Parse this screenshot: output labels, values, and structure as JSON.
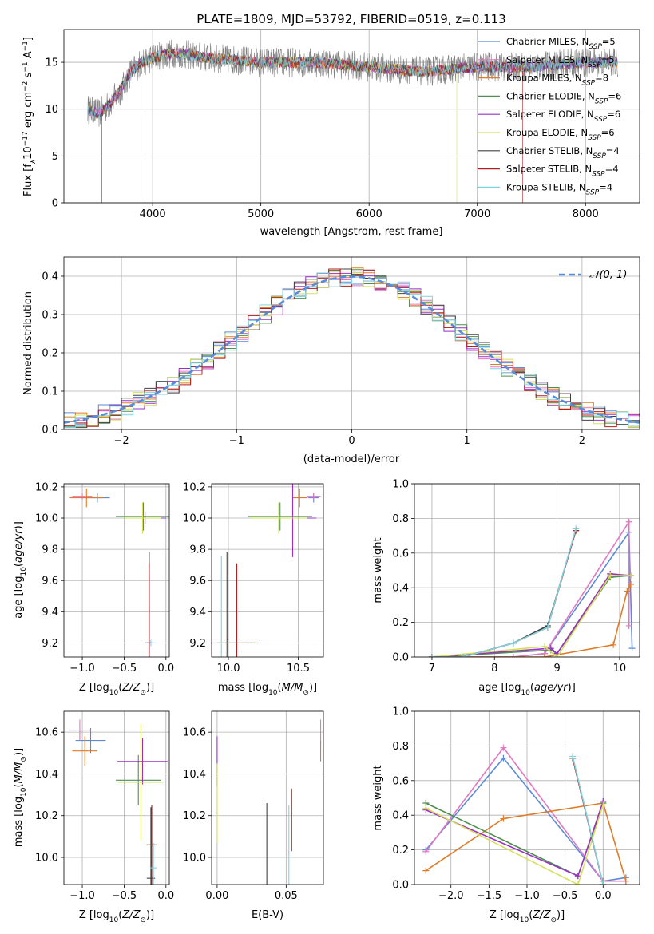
{
  "chart_data": [
    {
      "id": "spectrum",
      "type": "line",
      "title": "PLATE=1809, MJD=53792, FIBERID=0519, z=0.113",
      "xlabel": "wavelength [Angstrom, rest frame]",
      "ylabel": "Flux [fλ10^-17 erg cm^-2 s^-1 A^-1]",
      "xlim": [
        3180,
        8500
      ],
      "ylim": [
        0,
        18.5
      ],
      "xticks": [
        4000,
        5000,
        6000,
        7000,
        8000
      ],
      "yticks": [
        0,
        5,
        10,
        15
      ],
      "legend_loc": "right",
      "legend": [
        {
          "label": "Chabrier MILES, N_SSP=5",
          "color": "#5b8bd6"
        },
        {
          "label": "Salpeter MILES, N_SSP=5",
          "color": "#e377c2"
        },
        {
          "label": "Kroupa MILES, N_SSP=8",
          "color": "#e07b28"
        },
        {
          "label": "Chabrier ELODIE, N_SSP=6",
          "color": "#4f8f4f"
        },
        {
          "label": "Salpeter ELODIE, N_SSP=6",
          "color": "#9b30c8"
        },
        {
          "label": "Kroupa ELODIE, N_SSP=6",
          "color": "#d6e05a"
        },
        {
          "label": "Chabrier STELIB, N_SSP=4",
          "color": "#404040"
        },
        {
          "label": "Salpeter STELIB, N_SSP=4",
          "color": "#b21f1f"
        },
        {
          "label": "Kroupa STELIB, N_SSP=4",
          "color": "#7fd3df"
        }
      ],
      "continuum": [
        [
          3400,
          10
        ],
        [
          3500,
          9.5
        ],
        [
          3600,
          10.5
        ],
        [
          3700,
          12
        ],
        [
          3800,
          14
        ],
        [
          3900,
          15
        ],
        [
          4000,
          15.5
        ],
        [
          4200,
          16
        ],
        [
          4500,
          15.5
        ],
        [
          5000,
          15
        ],
        [
          5500,
          15
        ],
        [
          6000,
          14.5
        ],
        [
          6500,
          14
        ],
        [
          7000,
          14.5
        ],
        [
          7500,
          14.5
        ],
        [
          8000,
          15
        ],
        [
          8300,
          15
        ]
      ],
      "data_range": [
        3400,
        8300
      ],
      "kroupa_elodie_range": [
        3930,
        6810
      ],
      "salpeter_stelib_range": [
        3530,
        7420
      ]
    },
    {
      "id": "residuals",
      "type": "histogram",
      "xlabel": "(data-model)/error",
      "ylabel": "Normed distribution",
      "xlim": [
        -2.5,
        2.5
      ],
      "ylim": [
        0,
        0.45
      ],
      "xticks": [
        -2,
        -1,
        0,
        1,
        2
      ],
      "yticks": [
        0.0,
        0.1,
        0.2,
        0.3,
        0.4
      ],
      "legend": [
        {
          "label": "𝒩(0, 1)",
          "color": "#5b8bd6",
          "style": "dashed"
        }
      ],
      "legend_loc": "top-right",
      "bin_width": 0.1,
      "series_colors": [
        "#5b8bd6",
        "#e377c2",
        "#e07b28",
        "#4f8f4f",
        "#9b30c8",
        "#d6e05a",
        "#404040",
        "#b21f1f",
        "#7fd3df"
      ]
    },
    {
      "id": "age-vs-Z",
      "type": "errorbar",
      "xlabel": "Z [log10(Z/Z☉)]",
      "ylabel": "age  [log10(age/yr)]",
      "xlim": [
        -1.22,
        0.04
      ],
      "ylim": [
        9.11,
        10.22
      ],
      "xticks": [
        -1.0,
        -0.5,
        0.0
      ],
      "yticks": [
        9.2,
        9.4,
        9.6,
        9.8,
        10.0,
        10.2
      ],
      "points": [
        {
          "x": -0.82,
          "y": 10.13,
          "xerr": 0.15,
          "yerr": 0.03,
          "color": "#5b8bd6"
        },
        {
          "x": -1.0,
          "y": 10.14,
          "xerr": 0.12,
          "yerr": 0.02,
          "color": "#e377c2"
        },
        {
          "x": -0.95,
          "y": 10.13,
          "xerr": 0.2,
          "yerr": 0.06,
          "color": "#e07b28"
        },
        {
          "x": -0.27,
          "y": 10.01,
          "xerr": 0.33,
          "yerr": 0.09,
          "color": "#4f8f4f"
        },
        {
          "x": -0.25,
          "y": 10.0,
          "xerr": 0.25,
          "yerr": 0.04,
          "color": "#9b30c8"
        },
        {
          "x": -0.28,
          "y": 10.0,
          "xerr": 0.22,
          "yerr": 0.1,
          "color": "#d6e05a"
        },
        {
          "x": -0.2,
          "y": 9.2,
          "xerr": 0.05,
          "yerr": 0.58,
          "color": "#404040"
        },
        {
          "x": -0.2,
          "y": 9.2,
          "xerr": 0.03,
          "yerr": 0.51,
          "color": "#b21f1f"
        },
        {
          "x": -0.18,
          "y": 9.2,
          "xerr": 0.06,
          "yerr": 0.02,
          "color": "#7fd3df"
        }
      ]
    },
    {
      "id": "age-vs-mass",
      "type": "errorbar",
      "xlabel": "mass [log10(M/M☉)]",
      "ylabel": "",
      "xlim": [
        9.88,
        10.68
      ],
      "ylim": [
        9.11,
        10.22
      ],
      "xticks": [
        10.0,
        10.5
      ],
      "yticks": [
        9.2,
        9.4,
        9.6,
        9.8,
        10.0,
        10.2
      ],
      "points": [
        {
          "x": 10.61,
          "y": 10.13,
          "xerr": 0.04,
          "yerr": 0.03,
          "color": "#5b8bd6"
        },
        {
          "x": 10.61,
          "y": 10.14,
          "xerr": 0.05,
          "yerr": 0.02,
          "color": "#e377c2"
        },
        {
          "x": 10.51,
          "y": 10.13,
          "xerr": 0.05,
          "yerr": 0.06,
          "color": "#e07b28"
        },
        {
          "x": 10.37,
          "y": 10.01,
          "xerr": 0.23,
          "yerr": 0.09,
          "color": "#4f8f4f"
        },
        {
          "x": 10.46,
          "y": 10.0,
          "xerr": 0.17,
          "yerr": 0.25,
          "color": "#9b30c8"
        },
        {
          "x": 10.36,
          "y": 10.0,
          "xerr": 0.2,
          "yerr": 0.1,
          "color": "#d6e05a"
        },
        {
          "x": 9.99,
          "y": 9.2,
          "xerr": 0.0,
          "yerr": 0.58,
          "color": "#404040"
        },
        {
          "x": 10.06,
          "y": 9.2,
          "xerr": 0.14,
          "yerr": 0.51,
          "color": "#b21f1f"
        },
        {
          "x": 9.95,
          "y": 9.2,
          "xerr": 0.23,
          "yerr": 0.56,
          "color": "#7fd3df"
        }
      ]
    },
    {
      "id": "massweight-vs-age",
      "type": "line",
      "xlabel": "age  [log10(age/yr)]",
      "ylabel": "mass weight",
      "xlim": [
        6.72,
        10.32
      ],
      "ylim": [
        0,
        1.0
      ],
      "xticks": [
        7,
        8,
        9,
        10
      ],
      "yticks": [
        0.0,
        0.2,
        0.4,
        0.6,
        0.8,
        1.0
      ],
      "series": [
        {
          "color": "#5b8bd6",
          "x": [
            7.0,
            8.3,
            8.8,
            10.15,
            10.2
          ],
          "y": [
            0.0,
            0.0,
            0.02,
            0.72,
            0.05
          ]
        },
        {
          "color": "#e377c2",
          "x": [
            7.0,
            8.3,
            8.8,
            10.15,
            10.15
          ],
          "y": [
            0.0,
            0.0,
            0.02,
            0.78,
            0.18
          ]
        },
        {
          "color": "#e07b28",
          "x": [
            7.0,
            8.8,
            9.9,
            10.12,
            10.18
          ],
          "y": [
            0.0,
            0.0,
            0.07,
            0.38,
            0.42
          ]
        },
        {
          "color": "#4f8f4f",
          "x": [
            7.0,
            8.9,
            9.0,
            9.85,
            10.18
          ],
          "y": [
            0.0,
            0.04,
            0.02,
            0.46,
            0.47
          ]
        },
        {
          "color": "#9b30c8",
          "x": [
            7.0,
            8.9,
            9.0,
            9.85,
            10.18
          ],
          "y": [
            0.0,
            0.05,
            0.02,
            0.48,
            0.47
          ]
        },
        {
          "color": "#d6e05a",
          "x": [
            7.0,
            8.8,
            9.0,
            9.85,
            10.18
          ],
          "y": [
            0.0,
            0.06,
            0.0,
            0.47,
            0.47
          ]
        },
        {
          "color": "#404040",
          "x": [
            7.0,
            7.5,
            8.3,
            8.85,
            9.3
          ],
          "y": [
            0.0,
            0.0,
            0.08,
            0.18,
            0.73
          ]
        },
        {
          "color": "#b21f1f",
          "x": [
            7.0,
            7.5,
            8.3,
            8.85,
            9.3
          ],
          "y": [
            0.0,
            0.0,
            0.08,
            0.17,
            0.73
          ]
        },
        {
          "color": "#7fd3df",
          "x": [
            7.0,
            7.5,
            8.3,
            8.85,
            9.3
          ],
          "y": [
            0.0,
            0.0,
            0.08,
            0.17,
            0.74
          ]
        }
      ]
    },
    {
      "id": "mass-vs-Z",
      "type": "errorbar",
      "xlabel": "Z [log10(Z/Z☉)]",
      "ylabel": "mass [log10(M/M☉)]",
      "xlim": [
        -1.22,
        0.04
      ],
      "ylim": [
        9.87,
        10.7
      ],
      "xticks": [
        -1.0,
        -0.5,
        0.0
      ],
      "yticks": [
        10.0,
        10.2,
        10.4,
        10.6
      ],
      "points": [
        {
          "x": -0.9,
          "y": 10.56,
          "xerr": 0.18,
          "yerr": 0.06,
          "color": "#5b8bd6"
        },
        {
          "x": -1.03,
          "y": 10.61,
          "xerr": 0.12,
          "yerr": 0.05,
          "color": "#e377c2"
        },
        {
          "x": -0.97,
          "y": 10.51,
          "xerr": 0.15,
          "yerr": 0.07,
          "color": "#e07b28"
        },
        {
          "x": -0.33,
          "y": 10.37,
          "xerr": 0.27,
          "yerr": 0.12,
          "color": "#4f8f4f"
        },
        {
          "x": -0.28,
          "y": 10.46,
          "xerr": 0.3,
          "yerr": 0.11,
          "color": "#9b30c8"
        },
        {
          "x": -0.3,
          "y": 10.36,
          "xerr": 0.27,
          "yerr": 0.28,
          "color": "#d6e05a"
        },
        {
          "x": -0.18,
          "y": 9.9,
          "xerr": 0.05,
          "yerr": 0.34,
          "color": "#404040"
        },
        {
          "x": -0.17,
          "y": 10.06,
          "xerr": 0.06,
          "yerr": 0.19,
          "color": "#b21f1f"
        },
        {
          "x": -0.15,
          "y": 9.95,
          "xerr": 0.04,
          "yerr": 0.12,
          "color": "#7fd3df"
        }
      ]
    },
    {
      "id": "mass-vs-EBV",
      "type": "errorbar",
      "xlabel": "E(B-V)",
      "ylabel": "",
      "xlim": [
        -0.004,
        0.077
      ],
      "ylim": [
        9.87,
        10.7
      ],
      "xticks": [
        0.0,
        0.05
      ],
      "yticks": [
        10.0,
        10.2,
        10.4,
        10.6
      ],
      "points": [
        {
          "x": 0.075,
          "y": 10.6,
          "xerr": 0.0,
          "yerr": 0.06,
          "color": "#e377c2"
        },
        {
          "x": 0.075,
          "y": 10.51,
          "xerr": 0.0,
          "yerr": 0.05,
          "color": "#e07b28"
        },
        {
          "x": 0.0,
          "y": 10.46,
          "xerr": 0.0,
          "yerr": 0.12,
          "color": "#9b30c8"
        },
        {
          "x": 0.0,
          "y": 10.26,
          "xerr": 0.0,
          "yerr": 0.19,
          "color": "#d6e05a"
        },
        {
          "x": 0.036,
          "y": 10.02,
          "xerr": 0.0,
          "yerr": 0.24,
          "color": "#404040"
        },
        {
          "x": 0.054,
          "y": 10.18,
          "xerr": 0.0,
          "yerr": 0.15,
          "color": "#b21f1f"
        },
        {
          "x": 0.052,
          "y": 10.06,
          "xerr": 0.0,
          "yerr": 0.19,
          "color": "#7fd3df"
        }
      ]
    },
    {
      "id": "massweight-vs-Z",
      "type": "line",
      "xlabel": "Z [log10(Z/Z☉)]",
      "ylabel": "mass weight",
      "xlim": [
        -2.48,
        0.48
      ],
      "ylim": [
        0,
        1.0
      ],
      "xticks": [
        -2.0,
        -1.5,
        -1.0,
        -0.5,
        0.0
      ],
      "yticks": [
        0.0,
        0.2,
        0.4,
        0.6,
        0.8,
        1.0
      ],
      "series": [
        {
          "color": "#5b8bd6",
          "x": [
            -2.33,
            -1.31,
            0.0,
            0.3
          ],
          "y": [
            0.2,
            0.73,
            0.02,
            0.04
          ]
        },
        {
          "color": "#e377c2",
          "x": [
            -2.33,
            -1.31,
            0.0,
            0.3
          ],
          "y": [
            0.19,
            0.79,
            0.02,
            0.02
          ]
        },
        {
          "color": "#e07b28",
          "x": [
            -2.33,
            -1.31,
            0.0,
            0.3
          ],
          "y": [
            0.08,
            0.38,
            0.47,
            0.02
          ]
        },
        {
          "color": "#4f8f4f",
          "x": [
            -2.33,
            -0.33,
            0.0
          ],
          "y": [
            0.47,
            0.05,
            0.47
          ]
        },
        {
          "color": "#9b30c8",
          "x": [
            -2.33,
            -0.33,
            0.0
          ],
          "y": [
            0.43,
            0.05,
            0.48
          ]
        },
        {
          "color": "#d6e05a",
          "x": [
            -2.33,
            -0.33,
            0.0
          ],
          "y": [
            0.44,
            0.0,
            0.46
          ]
        },
        {
          "color": "#404040",
          "x": [
            -0.4,
            0.0
          ],
          "y": [
            0.73,
            0.0
          ]
        },
        {
          "color": "#b21f1f",
          "x": [
            -0.4,
            0.0
          ],
          "y": [
            0.73,
            0.0
          ]
        },
        {
          "color": "#7fd3df",
          "x": [
            -0.4,
            0.0
          ],
          "y": [
            0.74,
            0.0
          ]
        }
      ]
    }
  ]
}
